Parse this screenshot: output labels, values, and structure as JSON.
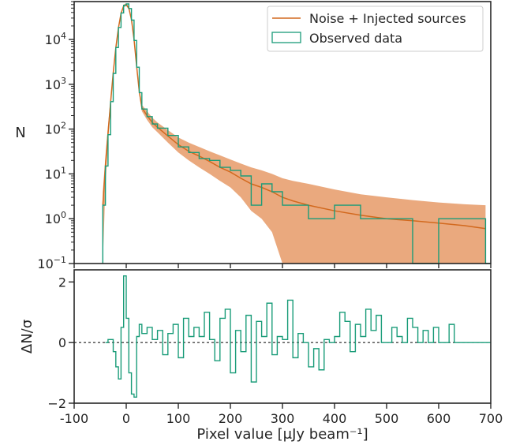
{
  "chart_data": [
    {
      "panel": "top",
      "type": "histogram",
      "y_scale": "log",
      "ylabel": "N",
      "xlim": [
        -100,
        700
      ],
      "ylim": [
        0.1,
        70000
      ],
      "y_ticks": [
        {
          "value": 0.1,
          "base": "10",
          "exp": "−1"
        },
        {
          "value": 1,
          "base": "10",
          "exp": "0"
        },
        {
          "value": 10,
          "base": "10",
          "exp": "1"
        },
        {
          "value": 100,
          "base": "10",
          "exp": "2"
        },
        {
          "value": 1000,
          "base": "10",
          "exp": "3"
        },
        {
          "value": 10000,
          "base": "10",
          "exp": "4"
        }
      ],
      "legend_position": "top-right",
      "series": [
        {
          "name": "Noise + Injected sources",
          "kind": "line_with_band",
          "color": "#d2691e",
          "band_color": "#e8a070",
          "x": [
            -45,
            -40,
            -35,
            -30,
            -25,
            -20,
            -15,
            -10,
            -5,
            0,
            5,
            10,
            15,
            20,
            25,
            30,
            40,
            50,
            60,
            80,
            100,
            120,
            140,
            160,
            180,
            200,
            220,
            240,
            260,
            280,
            300,
            320,
            350,
            400,
            450,
            500,
            550,
            600,
            650,
            690
          ],
          "values": [
            2,
            15,
            80,
            400,
            1800,
            6500,
            18000,
            38000,
            56000,
            60000,
            50000,
            28000,
            10000,
            2500,
            700,
            300,
            200,
            140,
            110,
            70,
            45,
            32,
            25,
            19,
            14,
            11,
            8,
            6,
            5,
            4,
            3,
            2.5,
            2,
            1.5,
            1.2,
            1,
            0.9,
            0.8,
            0.7,
            0.6
          ],
          "band_low": [
            0.1,
            5,
            50,
            300,
            1500,
            5500,
            16000,
            35000,
            52000,
            56000,
            46000,
            25000,
            9000,
            2200,
            600,
            250,
            160,
            110,
            85,
            50,
            30,
            20,
            14,
            10,
            7,
            5,
            3,
            1.5,
            1,
            0.5,
            0.1,
            0.1,
            0.1,
            0.1,
            0.1,
            0.1,
            0.1,
            0.1,
            0.1,
            0.1
          ],
          "band_high": [
            4,
            25,
            120,
            500,
            2100,
            7500,
            20000,
            41000,
            60000,
            64000,
            54000,
            31000,
            11000,
            2800,
            800,
            350,
            250,
            180,
            140,
            95,
            65,
            50,
            40,
            32,
            26,
            21,
            17,
            14,
            12,
            10,
            8,
            7,
            6,
            4.5,
            3.5,
            3,
            2.6,
            2.3,
            2.1,
            2
          ]
        },
        {
          "name": "Observed data",
          "kind": "step",
          "color": "#1a9c79",
          "x": [
            -45,
            -40,
            -35,
            -30,
            -25,
            -20,
            -15,
            -10,
            -5,
            0,
            5,
            10,
            15,
            20,
            25,
            30,
            40,
            50,
            60,
            80,
            100,
            120,
            140,
            160,
            180,
            200,
            220,
            240,
            260,
            280,
            300,
            320,
            350,
            400,
            450,
            500,
            550,
            600,
            650,
            690
          ],
          "values": [
            2,
            15,
            75,
            410,
            1750,
            6600,
            18500,
            39000,
            58000,
            62000,
            49000,
            27000,
            9500,
            2400,
            650,
            280,
            190,
            130,
            105,
            72,
            40,
            30,
            22,
            20,
            14,
            12,
            9,
            2,
            6,
            4,
            2,
            2,
            1,
            2,
            1,
            1,
            0.1,
            1,
            1,
            0.1
          ]
        }
      ]
    },
    {
      "panel": "bottom",
      "type": "step",
      "ylabel": "ΔN/σ",
      "xlabel": "Pixel value [μJy beam⁻¹]",
      "xlim": [
        -100,
        700
      ],
      "ylim": [
        -2,
        2.4
      ],
      "x_ticks": [
        "-100",
        "0",
        "100",
        "200",
        "300",
        "400",
        "500",
        "600",
        "700"
      ],
      "y_ticks": [
        "−2",
        "0",
        "2"
      ],
      "reference_line": 0,
      "color": "#1a9c79",
      "x": [
        -40,
        -35,
        -30,
        -25,
        -20,
        -15,
        -10,
        -5,
        0,
        5,
        10,
        15,
        20,
        25,
        30,
        40,
        50,
        60,
        70,
        80,
        90,
        100,
        110,
        120,
        130,
        140,
        150,
        160,
        170,
        180,
        190,
        200,
        210,
        220,
        230,
        240,
        250,
        260,
        270,
        280,
        290,
        300,
        310,
        320,
        330,
        340,
        350,
        360,
        370,
        380,
        390,
        400,
        410,
        420,
        430,
        440,
        450,
        460,
        470,
        480,
        490,
        500,
        510,
        520,
        530,
        540,
        550,
        560,
        570,
        580,
        590,
        600,
        610,
        620,
        630,
        640,
        650,
        660,
        670,
        680,
        690,
        700
      ],
      "values": [
        0,
        0.1,
        0.1,
        -0.3,
        -0.8,
        -1.2,
        0.5,
        2.2,
        0.8,
        -1.0,
        -1.7,
        -1.8,
        0.2,
        0.6,
        0.3,
        0.5,
        0.1,
        0.4,
        -0.4,
        0.3,
        0.6,
        -0.5,
        0.8,
        0.2,
        0.5,
        0.2,
        1.0,
        0.1,
        -0.6,
        0.8,
        1.1,
        -1.0,
        0.4,
        -0.3,
        0.9,
        -1.3,
        0.7,
        0.2,
        1.3,
        -0.4,
        0.2,
        0.1,
        1.4,
        -0.5,
        0.3,
        0,
        -0.8,
        -0.2,
        -0.9,
        0.1,
        0,
        0.2,
        1.0,
        0.7,
        -0.3,
        0.6,
        0.2,
        1.1,
        0.4,
        0.9,
        0,
        0,
        0.5,
        0.2,
        0,
        0.8,
        0.5,
        0,
        0.4,
        0,
        0.5,
        0,
        0,
        0.6,
        0,
        0,
        0,
        0,
        0,
        0,
        0,
        0
      ]
    }
  ]
}
